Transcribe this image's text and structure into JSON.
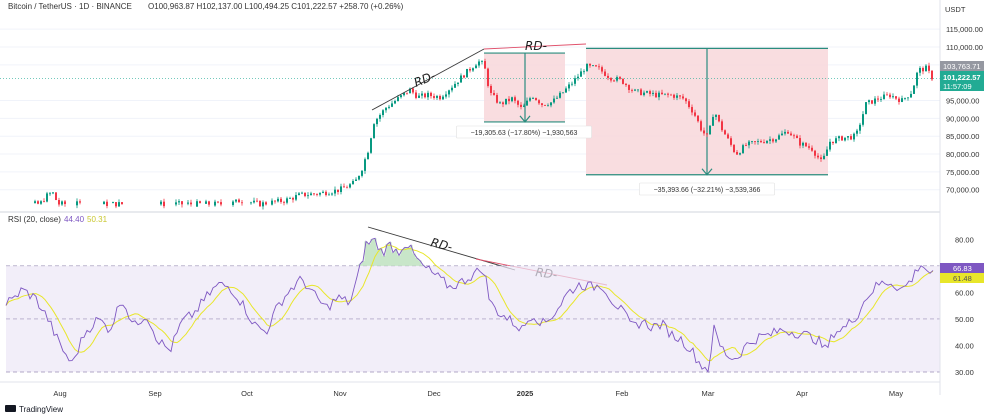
{
  "header": {
    "symbol": "Bitcoin / TetherUS · 1D · BINANCE",
    "ohlc": "O100,963.87 H102,137.00 L100,494.25 C101,222.57 +258.70 (+0.26%)"
  },
  "price_axis": {
    "currency": "USDT",
    "ticks": [
      "115,000.00",
      "110,000.00",
      "105,000.00",
      "95,000.00",
      "90,000.00",
      "85,000.00",
      "80,000.00",
      "75,000.00",
      "70,000.00"
    ],
    "gray_tag": "103,763.71",
    "last_price_tag": "101,222.57",
    "countdown_tag": "11:57:09"
  },
  "rsi": {
    "label": "RSI (20, close)",
    "value1": "44.40",
    "value2": "50.31",
    "ticks": [
      "80.00",
      "70.00",
      "60.00",
      "50.00",
      "40.00",
      "30.00"
    ],
    "tag_rsi": "66.83",
    "tag_ma": "61.48"
  },
  "time_axis": [
    "Aug",
    "Sep",
    "Oct",
    "Nov",
    "Dec",
    "2025",
    "Feb",
    "Mar",
    "Apr",
    "May"
  ],
  "annotations": {
    "rd_labels": [
      "RD-",
      "RD-",
      "RD-",
      "RD-"
    ],
    "measure1": "−19,305.63 (−17.80%) −1,930,563",
    "measure2": "−35,393.66 (−32.21%) −3,539,366"
  },
  "footer": {
    "brand": "TradingView"
  },
  "colors": {
    "up": "#089981",
    "down": "#f23645",
    "rsi": "#7e57c2",
    "rsi_ma": "#e8e62a",
    "rsi_band": "#ede7f6",
    "measure_fill": "#f8d7da",
    "measure_line": "#2a8c7e",
    "last_price": "#22ab94",
    "rd_line_price": "#3a3a3a",
    "rd_line_red": "#e0506a"
  },
  "chart_data": [
    {
      "type": "candlestick",
      "title": "Bitcoin / TetherUS · 1D · BINANCE",
      "ylim": [
        66000,
        117000
      ],
      "x": [
        "Aug",
        "Sep",
        "Oct",
        "Nov",
        "Dec",
        "2025",
        "Feb",
        "Mar",
        "Apr",
        "May"
      ],
      "close_anchors": [
        {
          "x": 0,
          "y": 66000
        },
        {
          "x": 40,
          "y": 66000
        },
        {
          "x": 48,
          "y": 68700
        },
        {
          "x": 53,
          "y": 69000
        },
        {
          "x": 58,
          "y": 66000
        },
        {
          "x": 230,
          "y": 66000
        },
        {
          "x": 240,
          "y": 67000
        },
        {
          "x": 260,
          "y": 66000
        },
        {
          "x": 285,
          "y": 67000
        },
        {
          "x": 300,
          "y": 68500
        },
        {
          "x": 320,
          "y": 69000
        },
        {
          "x": 340,
          "y": 70000
        },
        {
          "x": 355,
          "y": 72000
        },
        {
          "x": 362,
          "y": 76000
        },
        {
          "x": 368,
          "y": 81000
        },
        {
          "x": 374,
          "y": 89000
        },
        {
          "x": 386,
          "y": 93000
        },
        {
          "x": 398,
          "y": 95500
        },
        {
          "x": 410,
          "y": 98000
        },
        {
          "x": 418,
          "y": 96000
        },
        {
          "x": 428,
          "y": 96500
        },
        {
          "x": 440,
          "y": 96000
        },
        {
          "x": 452,
          "y": 99000
        },
        {
          "x": 465,
          "y": 102500
        },
        {
          "x": 478,
          "y": 106000
        },
        {
          "x": 484,
          "y": 105000
        },
        {
          "x": 490,
          "y": 97000
        },
        {
          "x": 500,
          "y": 94000
        },
        {
          "x": 512,
          "y": 95500
        },
        {
          "x": 522,
          "y": 92500
        },
        {
          "x": 532,
          "y": 96500
        },
        {
          "x": 542,
          "y": 94000
        },
        {
          "x": 552,
          "y": 94500
        },
        {
          "x": 562,
          "y": 97000
        },
        {
          "x": 574,
          "y": 100500
        },
        {
          "x": 586,
          "y": 104500
        },
        {
          "x": 598,
          "y": 104000
        },
        {
          "x": 610,
          "y": 101500
        },
        {
          "x": 622,
          "y": 100500
        },
        {
          "x": 634,
          "y": 97500
        },
        {
          "x": 646,
          "y": 97000
        },
        {
          "x": 658,
          "y": 96500
        },
        {
          "x": 672,
          "y": 96500
        },
        {
          "x": 684,
          "y": 95500
        },
        {
          "x": 694,
          "y": 91500
        },
        {
          "x": 702,
          "y": 86500
        },
        {
          "x": 708,
          "y": 84500
        },
        {
          "x": 714,
          "y": 92500
        },
        {
          "x": 720,
          "y": 88000
        },
        {
          "x": 728,
          "y": 84000
        },
        {
          "x": 736,
          "y": 80000
        },
        {
          "x": 746,
          "y": 82500
        },
        {
          "x": 760,
          "y": 83500
        },
        {
          "x": 776,
          "y": 84500
        },
        {
          "x": 788,
          "y": 86500
        },
        {
          "x": 800,
          "y": 83000
        },
        {
          "x": 812,
          "y": 81500
        },
        {
          "x": 822,
          "y": 77500
        },
        {
          "x": 830,
          "y": 83500
        },
        {
          "x": 842,
          "y": 84500
        },
        {
          "x": 856,
          "y": 85000
        },
        {
          "x": 866,
          "y": 94000
        },
        {
          "x": 878,
          "y": 95500
        },
        {
          "x": 890,
          "y": 96500
        },
        {
          "x": 902,
          "y": 95000
        },
        {
          "x": 912,
          "y": 97500
        },
        {
          "x": 918,
          "y": 103500
        },
        {
          "x": 926,
          "y": 104000
        },
        {
          "x": 932,
          "y": 101500
        }
      ],
      "measures": [
        {
          "from": 108300,
          "to": 89000,
          "change": "−19,305.63 (−17.80%)"
        },
        {
          "from": 109600,
          "to": 74200,
          "change": "−35,393.66 (−32.21%)"
        }
      ],
      "last_price": 101222.57
    },
    {
      "type": "line",
      "title": "RSI (20, close)",
      "ylim": [
        27,
        85
      ],
      "reference_lines": [
        70,
        50,
        30
      ],
      "x": [
        "Aug",
        "Sep",
        "Oct",
        "Nov",
        "Dec",
        "2025",
        "Feb",
        "Mar",
        "Apr",
        "May"
      ],
      "rsi_anchors": [
        {
          "x": 0,
          "y": 55
        },
        {
          "x": 12,
          "y": 57
        },
        {
          "x": 22,
          "y": 61
        },
        {
          "x": 35,
          "y": 58
        },
        {
          "x": 48,
          "y": 50
        },
        {
          "x": 60,
          "y": 40
        },
        {
          "x": 72,
          "y": 33
        },
        {
          "x": 85,
          "y": 45
        },
        {
          "x": 98,
          "y": 50
        },
        {
          "x": 110,
          "y": 46
        },
        {
          "x": 122,
          "y": 58
        },
        {
          "x": 134,
          "y": 47
        },
        {
          "x": 146,
          "y": 52
        },
        {
          "x": 158,
          "y": 42
        },
        {
          "x": 170,
          "y": 38
        },
        {
          "x": 182,
          "y": 49
        },
        {
          "x": 194,
          "y": 52
        },
        {
          "x": 206,
          "y": 58
        },
        {
          "x": 218,
          "y": 63
        },
        {
          "x": 230,
          "y": 62
        },
        {
          "x": 242,
          "y": 56
        },
        {
          "x": 254,
          "y": 48
        },
        {
          "x": 266,
          "y": 45
        },
        {
          "x": 278,
          "y": 55
        },
        {
          "x": 290,
          "y": 61
        },
        {
          "x": 302,
          "y": 65
        },
        {
          "x": 314,
          "y": 59
        },
        {
          "x": 326,
          "y": 54
        },
        {
          "x": 338,
          "y": 58
        },
        {
          "x": 350,
          "y": 56
        },
        {
          "x": 358,
          "y": 66
        },
        {
          "x": 366,
          "y": 78
        },
        {
          "x": 374,
          "y": 80
        },
        {
          "x": 382,
          "y": 75
        },
        {
          "x": 390,
          "y": 78
        },
        {
          "x": 398,
          "y": 75
        },
        {
          "x": 406,
          "y": 79
        },
        {
          "x": 414,
          "y": 74
        },
        {
          "x": 422,
          "y": 70
        },
        {
          "x": 430,
          "y": 68
        },
        {
          "x": 440,
          "y": 65
        },
        {
          "x": 450,
          "y": 62
        },
        {
          "x": 462,
          "y": 64
        },
        {
          "x": 474,
          "y": 67
        },
        {
          "x": 484,
          "y": 69
        },
        {
          "x": 490,
          "y": 56
        },
        {
          "x": 500,
          "y": 52
        },
        {
          "x": 512,
          "y": 49
        },
        {
          "x": 522,
          "y": 46
        },
        {
          "x": 532,
          "y": 52
        },
        {
          "x": 544,
          "y": 48
        },
        {
          "x": 556,
          "y": 53
        },
        {
          "x": 568,
          "y": 60
        },
        {
          "x": 580,
          "y": 63
        },
        {
          "x": 592,
          "y": 62
        },
        {
          "x": 602,
          "y": 63
        },
        {
          "x": 612,
          "y": 57
        },
        {
          "x": 622,
          "y": 53
        },
        {
          "x": 632,
          "y": 47
        },
        {
          "x": 642,
          "y": 49
        },
        {
          "x": 652,
          "y": 47
        },
        {
          "x": 662,
          "y": 48
        },
        {
          "x": 672,
          "y": 44
        },
        {
          "x": 682,
          "y": 42
        },
        {
          "x": 692,
          "y": 38
        },
        {
          "x": 700,
          "y": 33
        },
        {
          "x": 708,
          "y": 31
        },
        {
          "x": 714,
          "y": 46
        },
        {
          "x": 720,
          "y": 40
        },
        {
          "x": 728,
          "y": 36
        },
        {
          "x": 736,
          "y": 35
        },
        {
          "x": 746,
          "y": 40
        },
        {
          "x": 758,
          "y": 43
        },
        {
          "x": 770,
          "y": 44
        },
        {
          "x": 782,
          "y": 46
        },
        {
          "x": 794,
          "y": 45
        },
        {
          "x": 806,
          "y": 44
        },
        {
          "x": 818,
          "y": 42
        },
        {
          "x": 826,
          "y": 38
        },
        {
          "x": 834,
          "y": 45
        },
        {
          "x": 846,
          "y": 47
        },
        {
          "x": 858,
          "y": 52
        },
        {
          "x": 866,
          "y": 58
        },
        {
          "x": 878,
          "y": 63
        },
        {
          "x": 890,
          "y": 64
        },
        {
          "x": 902,
          "y": 61
        },
        {
          "x": 912,
          "y": 65
        },
        {
          "x": 920,
          "y": 71
        },
        {
          "x": 928,
          "y": 68
        },
        {
          "x": 934,
          "y": 66.8
        }
      ]
    }
  ]
}
